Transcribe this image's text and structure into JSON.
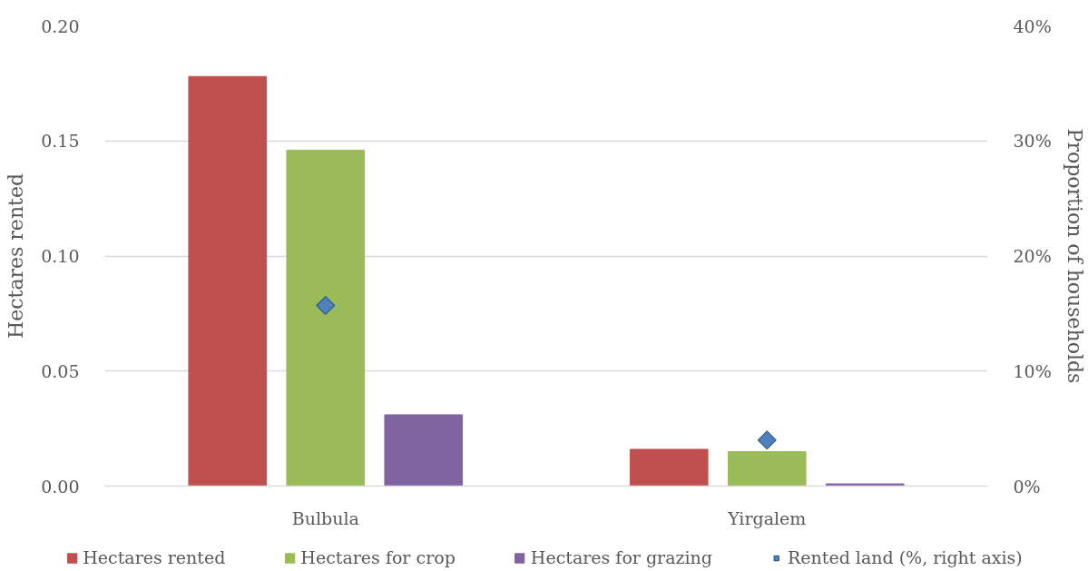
{
  "chart_data": {
    "type": "bar",
    "categories": [
      "Bulbula",
      "Yirgalem"
    ],
    "ylabel": "Hectares rented",
    "y2label": "Proportion of households",
    "ylim": [
      0,
      0.2
    ],
    "yticks": [
      {
        "value": 0,
        "label": "0.00"
      },
      {
        "value": 0.05,
        "label": "0.05"
      },
      {
        "value": 0.1,
        "label": "0.10"
      },
      {
        "value": 0.15,
        "label": "0.15"
      },
      {
        "value": 0.2,
        "label": "0.20"
      }
    ],
    "y2lim": [
      0,
      40
    ],
    "y2ticks": [
      {
        "value": 0,
        "label": "0%"
      },
      {
        "value": 10,
        "label": "10%"
      },
      {
        "value": 20,
        "label": "20%"
      },
      {
        "value": 30,
        "label": "30%"
      },
      {
        "value": 40,
        "label": "40%"
      }
    ],
    "series": [
      {
        "name": "Hectares rented",
        "color": "#c0504d",
        "values": [
          0.178,
          0.016
        ]
      },
      {
        "name": "Hectares for crop",
        "color": "#9bbb59",
        "values": [
          0.146,
          0.015
        ]
      },
      {
        "name": "Hectares for grazing",
        "color": "#8064a2",
        "values": [
          0.031,
          0.001
        ]
      },
      {
        "name": "Rented land (%, right axis)",
        "type": "scatter",
        "axis": "y2",
        "marker": "diamond",
        "color": "#4f81bd",
        "x": [
          "Bulbula",
          "Yirgalem"
        ],
        "values": [
          15.7,
          4.0
        ]
      }
    ],
    "grid": "y",
    "legend": "bottom"
  }
}
